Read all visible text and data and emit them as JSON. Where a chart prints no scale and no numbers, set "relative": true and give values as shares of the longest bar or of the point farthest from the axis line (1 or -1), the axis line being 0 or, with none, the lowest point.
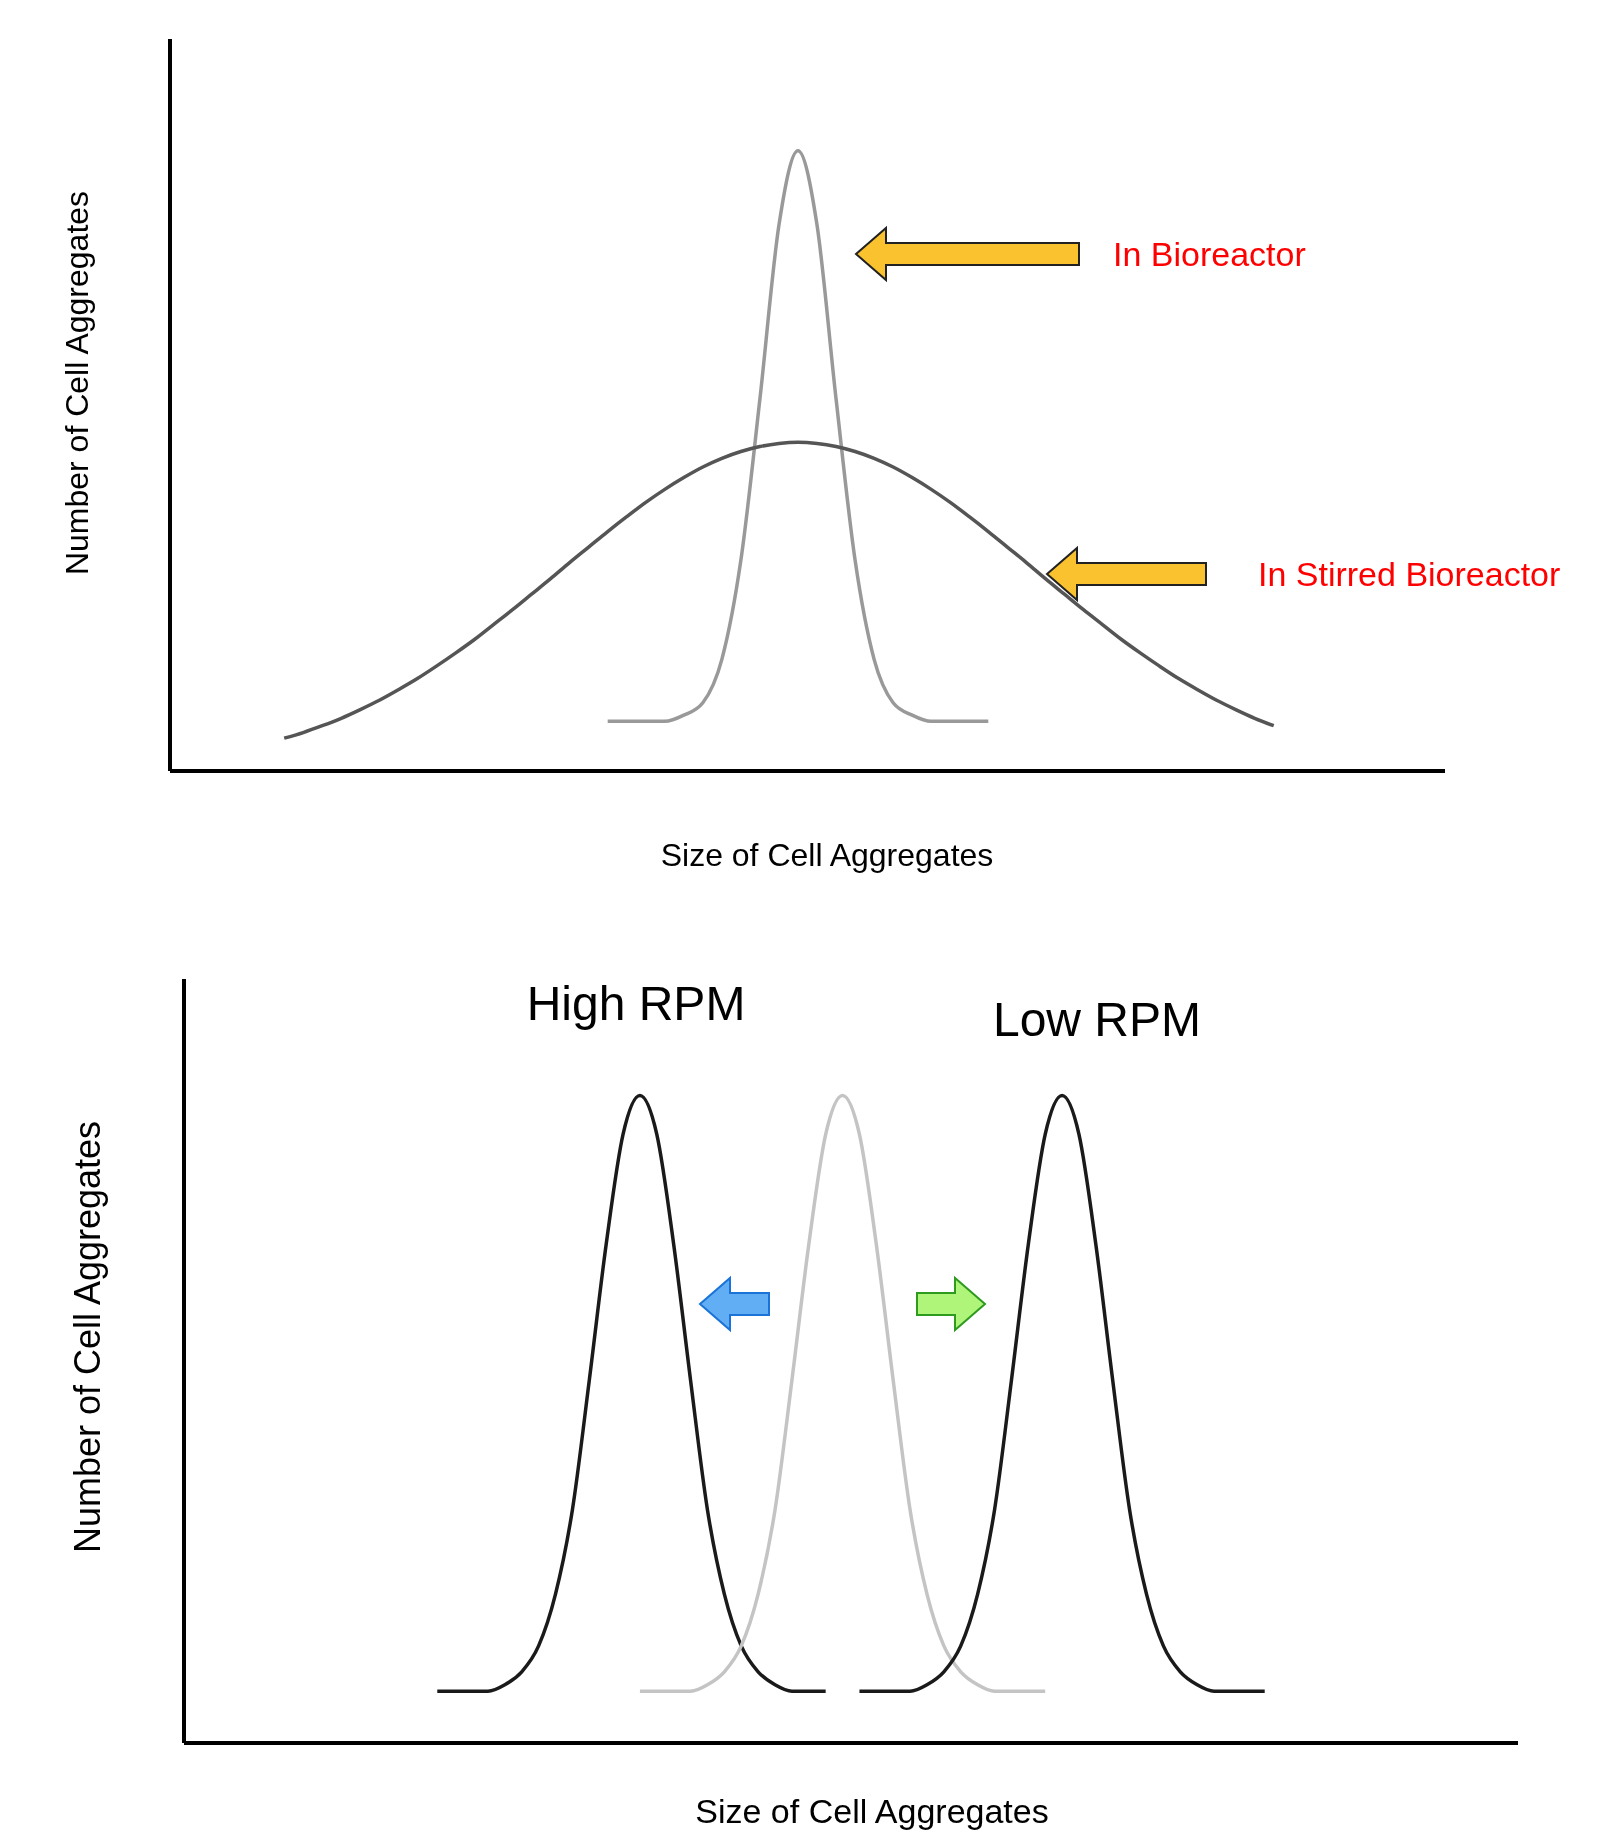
{
  "chart_data": [
    {
      "type": "line",
      "relative": true,
      "xlabel": "Size of Cell Aggregates",
      "ylabel": "Number of Cell Aggregates",
      "categories": [
        null,
        null,
        null,
        null,
        null,
        null,
        null,
        null,
        null,
        null,
        null,
        null,
        null,
        null,
        null,
        null,
        null,
        null,
        null,
        null,
        null,
        null,
        null,
        null,
        null,
        null,
        null,
        null,
        null,
        null,
        null,
        null,
        null,
        null,
        null,
        null,
        null,
        null,
        null,
        null,
        null,
        null,
        null,
        null,
        null,
        null,
        null,
        null,
        null,
        null,
        null,
        null,
        null,
        null,
        null,
        null,
        null,
        null,
        null,
        null,
        null,
        null,
        null,
        null,
        null,
        null,
        null,
        null
      ],
      "series": [
        {
          "name": "In Bioreactor",
          "color": "#999999",
          "values": [
            null,
            null,
            null,
            null,
            null,
            null,
            null,
            null,
            null,
            null,
            null,
            null,
            null,
            null,
            null,
            null,
            null,
            null,
            null,
            null,
            null,
            null,
            null,
            0.08,
            0.08,
            0.08,
            0.08,
            0.09,
            0.11,
            0.18,
            0.34,
            0.6,
            0.88,
            1,
            0.88,
            0.6,
            0.34,
            0.18,
            0.11,
            0.09,
            0.08,
            0.08,
            0.08,
            0.08,
            null,
            null,
            null,
            null,
            null,
            null,
            null,
            null,
            null,
            null,
            null,
            null,
            null,
            null,
            null,
            null,
            null,
            null,
            null,
            null,
            null,
            null,
            null,
            null
          ]
        },
        {
          "name": "In Stirred Bioreactor",
          "color": "#555555",
          "values": [
            null,
            null,
            null,
            null,
            null,
            null,
            0.053,
            0.062,
            0.073,
            0.085,
            0.099,
            0.114,
            0.131,
            0.149,
            0.169,
            0.19,
            0.212,
            0.236,
            0.26,
            0.285,
            0.31,
            0.336,
            0.361,
            0.386,
            0.41,
            0.433,
            0.454,
            0.473,
            0.49,
            0.504,
            0.515,
            0.523,
            0.528,
            0.53,
            0.528,
            0.523,
            0.515,
            0.504,
            0.49,
            0.473,
            0.454,
            0.433,
            0.41,
            0.386,
            0.361,
            0.336,
            0.31,
            0.285,
            0.26,
            0.236,
            0.212,
            0.19,
            0.169,
            0.149,
            0.131,
            0.114,
            0.099,
            0.085,
            0.073,
            null,
            null,
            null,
            null,
            null,
            null,
            null,
            null,
            null
          ]
        }
      ]
    },
    {
      "type": "line",
      "relative": true,
      "xlabel": "Size of Cell Aggregates",
      "ylabel": "Number of Cell Aggregates",
      "categories": [
        null,
        null,
        null,
        null,
        null,
        null,
        null,
        null,
        null,
        null,
        null,
        null,
        null,
        null,
        null,
        null,
        null,
        null,
        null,
        null,
        null,
        null,
        null,
        null,
        null,
        null,
        null,
        null,
        null,
        null,
        null,
        null,
        null,
        null,
        null,
        null,
        null,
        null,
        null,
        null,
        null,
        null,
        null,
        null,
        null,
        null,
        null,
        null,
        null,
        null,
        null,
        null,
        null,
        null,
        null,
        null,
        null,
        null,
        null,
        null,
        null,
        null,
        null,
        null,
        null,
        null,
        null,
        null,
        null,
        null,
        null,
        null,
        null,
        null,
        null,
        null,
        null,
        null,
        null,
        null
      ],
      "series": [
        {
          "name": "High RPM",
          "color": "#1a1a1a",
          "values": [
            null,
            null,
            null,
            null,
            null,
            null,
            null,
            null,
            null,
            null,
            null,
            null,
            null,
            null,
            null,
            0.08,
            0.08,
            0.08,
            0.08,
            0.09,
            0.11,
            0.15,
            0.23,
            0.36,
            0.56,
            0.77,
            0.94,
            1,
            0.94,
            0.77,
            0.56,
            0.36,
            0.23,
            0.15,
            0.11,
            0.09,
            0.08,
            0.08,
            0.08,
            null,
            null,
            null,
            null,
            null,
            null,
            null,
            null,
            null,
            null,
            null,
            null,
            null,
            null,
            null,
            null,
            null,
            null,
            null,
            null,
            null,
            null,
            null,
            null,
            null,
            null,
            null,
            null,
            null,
            null,
            null,
            null,
            null,
            null,
            null,
            null,
            null,
            null,
            null,
            null,
            null
          ]
        },
        {
          "color": "#c4c4c4",
          "values": [
            null,
            null,
            null,
            null,
            null,
            null,
            null,
            null,
            null,
            null,
            null,
            null,
            null,
            null,
            null,
            null,
            null,
            null,
            null,
            null,
            null,
            null,
            null,
            null,
            null,
            null,
            null,
            0.08,
            0.08,
            0.08,
            0.08,
            0.09,
            0.11,
            0.15,
            0.23,
            0.36,
            0.56,
            0.77,
            0.94,
            1,
            0.94,
            0.77,
            0.56,
            0.36,
            0.23,
            0.15,
            0.11,
            0.09,
            0.08,
            0.08,
            0.08,
            0.08,
            null,
            null,
            null,
            null,
            null,
            null,
            null,
            null,
            null,
            null,
            null,
            null,
            null,
            null,
            null,
            null,
            null,
            null,
            null,
            null,
            null,
            null,
            null,
            null,
            null,
            null,
            null,
            null
          ]
        },
        {
          "name": "Low RPM",
          "color": "#1a1a1a",
          "values": [
            null,
            null,
            null,
            null,
            null,
            null,
            null,
            null,
            null,
            null,
            null,
            null,
            null,
            null,
            null,
            null,
            null,
            null,
            null,
            null,
            null,
            null,
            null,
            null,
            null,
            null,
            null,
            null,
            null,
            null,
            null,
            null,
            null,
            null,
            null,
            null,
            null,
            null,
            null,
            null,
            0.08,
            0.08,
            0.08,
            0.08,
            0.09,
            0.11,
            0.15,
            0.23,
            0.36,
            0.56,
            0.77,
            0.94,
            1,
            0.94,
            0.77,
            0.56,
            0.36,
            0.23,
            0.15,
            0.11,
            0.09,
            0.08,
            0.08,
            0.08,
            0.08,
            null,
            null,
            null,
            null,
            null,
            null,
            null,
            null,
            null,
            null,
            null,
            null,
            null,
            null,
            null
          ]
        }
      ]
    }
  ]
}
